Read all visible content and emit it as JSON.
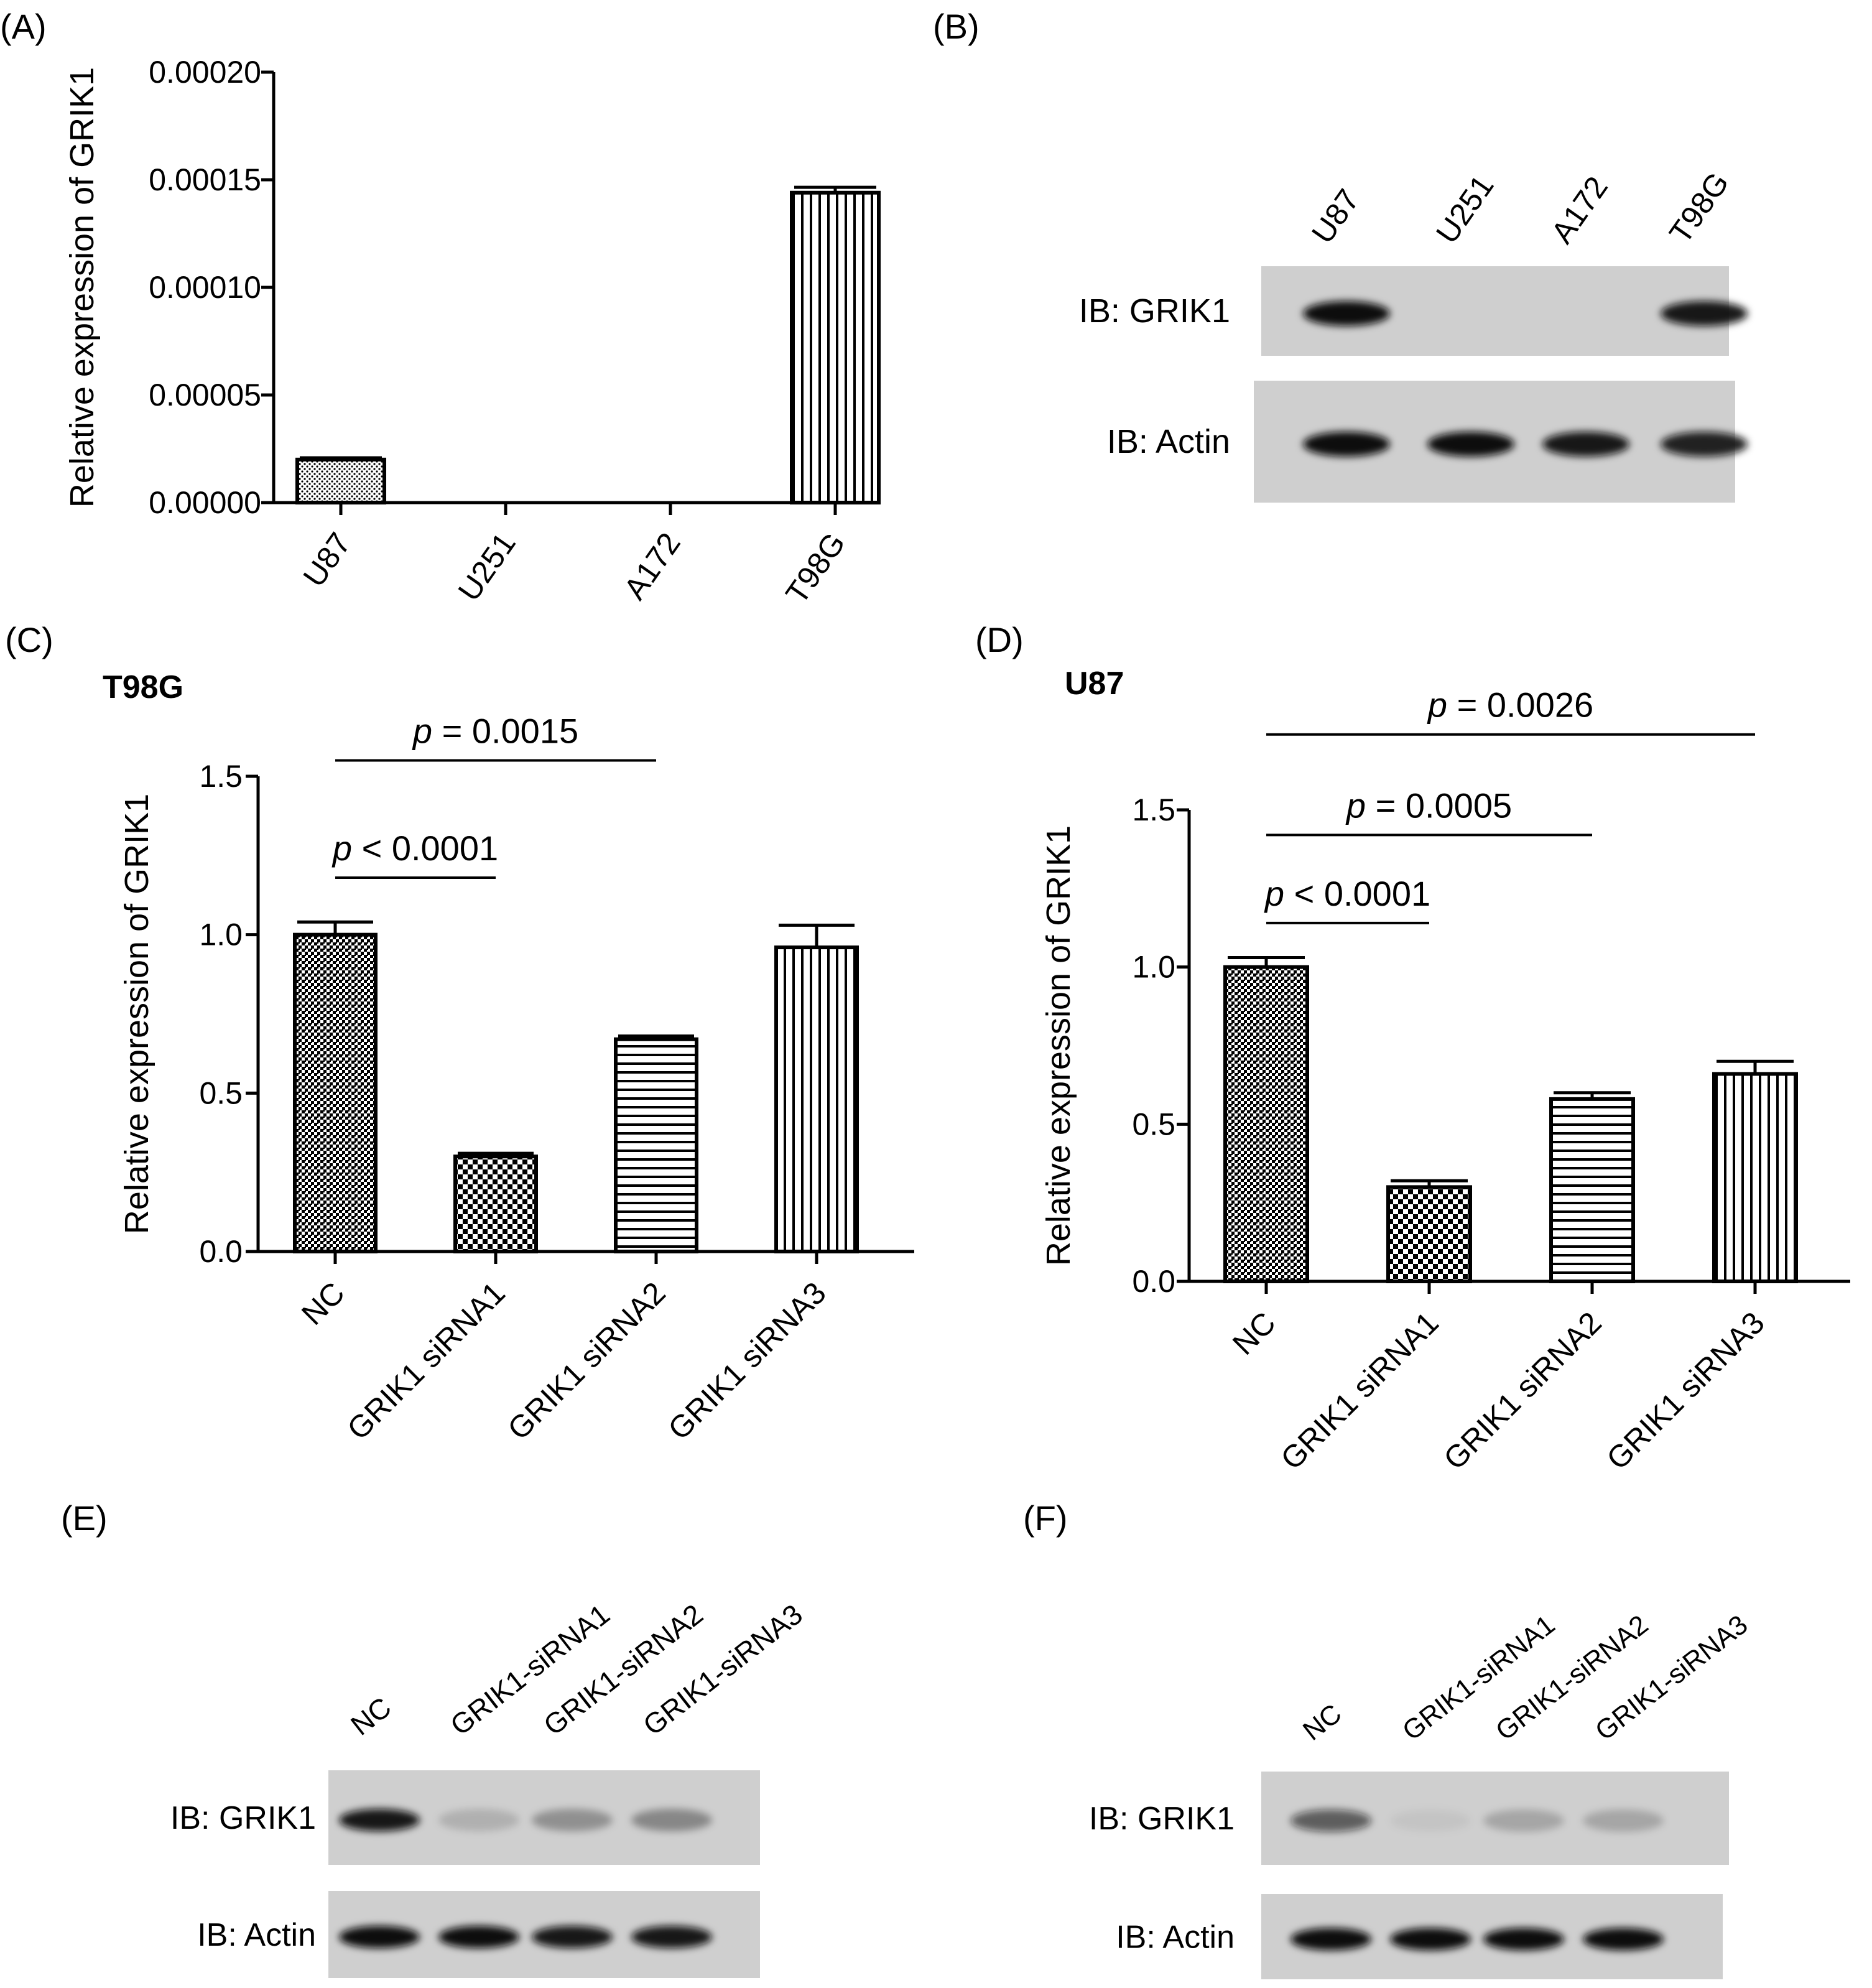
{
  "colors": {
    "ink": "#000000",
    "blot_bg": "#cfcfcf",
    "blot_band": "#0d0d0d",
    "bar_fill": "#ffffff"
  },
  "panels": {
    "A": {
      "label": "(A)"
    },
    "B": {
      "label": "(B)"
    },
    "C": {
      "label": "(C)",
      "title": "T98G"
    },
    "D": {
      "label": "(D)",
      "title": "U87"
    },
    "E": {
      "label": "(E)"
    },
    "F": {
      "label": "(F)"
    }
  },
  "chart_data": [
    {
      "id": "A",
      "type": "bar",
      "title": "",
      "ylabel": "Relative expression of GRIK1",
      "xlabel": "",
      "categories": [
        "U87",
        "U251",
        "A172",
        "T98G"
      ],
      "values": [
        2e-05,
        0.0,
        0.0,
        0.000144
      ],
      "errors": [
        8e-07,
        0,
        0,
        2.5e-06
      ],
      "patterns": [
        "dots",
        "none",
        "none",
        "vlines"
      ],
      "ylim": [
        0,
        0.0002
      ],
      "yticks": [
        0,
        5e-05,
        0.0001,
        0.00015,
        0.0002
      ],
      "ytick_labels": [
        "0.00000",
        "0.00005",
        "0.00010",
        "0.00015",
        "0.00020"
      ],
      "grid": false
    },
    {
      "id": "C",
      "type": "bar",
      "title": "T98G",
      "ylabel": "Relative expression of GRIK1",
      "xlabel": "",
      "categories": [
        "NC",
        "GRIK1 siRNA1",
        "GRIK1 siRNA2",
        "GRIK1 siRNA3"
      ],
      "values": [
        1.0,
        0.3,
        0.67,
        0.96
      ],
      "errors": [
        0.04,
        0.01,
        0.01,
        0.07
      ],
      "patterns": [
        "dense",
        "checker",
        "hlines",
        "vlines"
      ],
      "ylim": [
        0,
        1.5
      ],
      "yticks": [
        0,
        0.5,
        1.0,
        1.5
      ],
      "ytick_labels": [
        "0.0",
        "0.5",
        "1.0",
        "1.5"
      ],
      "grid": false,
      "annotations": [
        {
          "from": 0,
          "to": 1,
          "italic": "p",
          "rest": " < 0.0001",
          "y": 1.18
        },
        {
          "from": 0,
          "to": 2,
          "italic": "p",
          "rest": " = 0.0015",
          "y": 1.55
        }
      ]
    },
    {
      "id": "D",
      "type": "bar",
      "title": "U87",
      "ylabel": "Relative expression of GRIK1",
      "xlabel": "",
      "categories": [
        "NC",
        "GRIK1 siRNA1",
        "GRIK1 siRNA2",
        "GRIK1 siRNA3"
      ],
      "values": [
        1.0,
        0.3,
        0.58,
        0.66
      ],
      "errors": [
        0.03,
        0.02,
        0.02,
        0.04
      ],
      "patterns": [
        "dense",
        "checker",
        "hlines",
        "vlines"
      ],
      "ylim": [
        0,
        1.5
      ],
      "yticks": [
        0,
        0.5,
        1.0,
        1.5
      ],
      "ytick_labels": [
        "0.0",
        "0.5",
        "1.0",
        "1.5"
      ],
      "grid": false,
      "annotations": [
        {
          "from": 0,
          "to": 1,
          "italic": "p",
          "rest": " < 0.0001",
          "y": 1.14
        },
        {
          "from": 0,
          "to": 2,
          "italic": "p",
          "rest": " = 0.0005",
          "y": 1.42
        },
        {
          "from": 0,
          "to": 3,
          "italic": "p",
          "rest": " = 0.0026",
          "y": 1.74
        }
      ]
    }
  ],
  "blots": [
    {
      "id": "B",
      "lanes": [
        "U87",
        "U251",
        "A172",
        "T98G"
      ],
      "rows": [
        {
          "label": "IB: GRIK1",
          "intensity": [
            1.0,
            0.0,
            0.0,
            0.95
          ]
        },
        {
          "label": "IB: Actin",
          "intensity": [
            1.0,
            1.0,
            0.95,
            0.9
          ]
        }
      ]
    },
    {
      "id": "E",
      "lanes": [
        "NC",
        "GRIK1-siRNA1",
        "GRIK1-siRNA2",
        "GRIK1-siRNA3"
      ],
      "rows": [
        {
          "label": "IB: GRIK1",
          "intensity": [
            0.95,
            0.15,
            0.3,
            0.35
          ]
        },
        {
          "label": "IB: Actin",
          "intensity": [
            1.0,
            1.0,
            0.95,
            0.95
          ]
        }
      ]
    },
    {
      "id": "F",
      "lanes": [
        "NC",
        "GRIK1-siRNA1",
        "GRIK1-siRNA2",
        "GRIK1-siRNA3"
      ],
      "rows": [
        {
          "label": "IB: GRIK1",
          "intensity": [
            0.6,
            0.05,
            0.2,
            0.2
          ]
        },
        {
          "label": "IB: Actin",
          "intensity": [
            1.0,
            1.0,
            1.0,
            1.0
          ]
        }
      ]
    }
  ]
}
